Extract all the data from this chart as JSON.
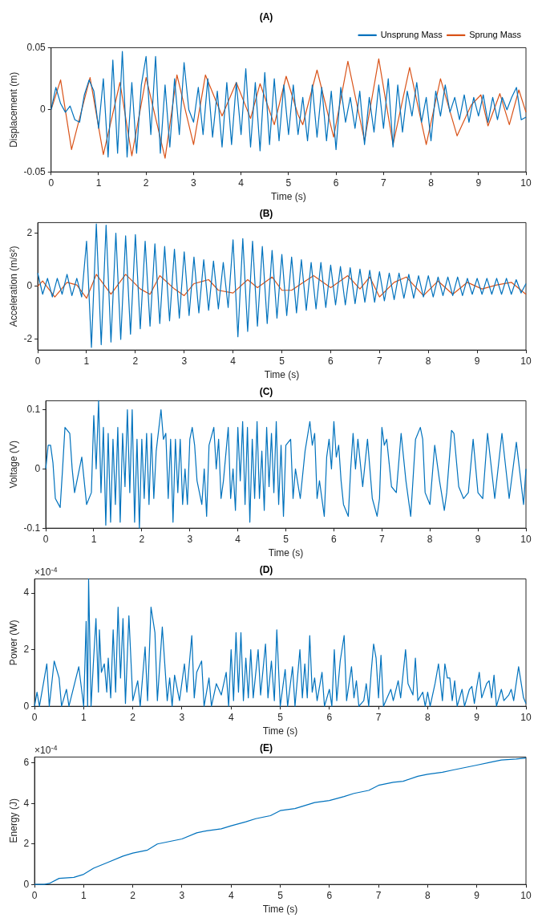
{
  "chart_data": [
    {
      "type": "line",
      "title": "(A)",
      "xlabel": "Time (s)",
      "ylabel": "Displacement (m)",
      "xlim": [
        0,
        10
      ],
      "xticks": [
        0,
        1,
        2,
        3,
        4,
        5,
        6,
        7,
        8,
        9,
        10
      ],
      "ylim": [
        -0.05,
        0.05
      ],
      "yticks": [
        -0.05,
        0,
        0.05
      ],
      "legend": "top right",
      "marker": "none",
      "series": [
        {
          "name": "Unsprung Mass",
          "color": "#0072bd",
          "x": [
            0,
            0.1,
            0.2,
            0.3,
            0.4,
            0.5,
            0.6,
            0.7,
            0.8,
            0.9,
            1,
            1.1,
            1.2,
            1.3,
            1.4,
            1.5,
            1.6,
            1.7,
            1.8,
            1.9,
            2,
            2.1,
            2.2,
            2.3,
            2.4,
            2.5,
            2.6,
            2.7,
            2.8,
            2.9,
            3,
            3.1,
            3.2,
            3.3,
            3.4,
            3.5,
            3.6,
            3.7,
            3.8,
            3.9,
            4,
            4.1,
            4.2,
            4.3,
            4.4,
            4.5,
            4.6,
            4.7,
            4.8,
            4.9,
            5,
            5.1,
            5.2,
            5.3,
            5.4,
            5.5,
            5.6,
            5.7,
            5.8,
            5.9,
            6,
            6.1,
            6.2,
            6.3,
            6.4,
            6.5,
            6.6,
            6.7,
            6.8,
            6.9,
            7,
            7.1,
            7.2,
            7.3,
            7.4,
            7.5,
            7.6,
            7.7,
            7.8,
            7.9,
            8,
            8.1,
            8.2,
            8.3,
            8.4,
            8.5,
            8.6,
            8.7,
            8.8,
            8.9,
            9,
            9.1,
            9.2,
            9.3,
            9.4,
            9.5,
            9.6,
            9.7,
            9.8,
            9.9,
            10
          ],
          "values": [
            0,
            0.018,
            0.005,
            -0.002,
            0.003,
            -0.008,
            -0.01,
            0.012,
            0.024,
            0.015,
            -0.015,
            0.025,
            -0.038,
            0.04,
            -0.035,
            0.047,
            -0.038,
            0.022,
            -0.035,
            0.02,
            0.043,
            -0.02,
            0.043,
            -0.035,
            0.02,
            -0.03,
            0.025,
            -0.02,
            0.038,
            0,
            -0.01,
            0.018,
            -0.02,
            0.025,
            -0.022,
            0.015,
            -0.03,
            0.022,
            -0.028,
            0.022,
            -0.02,
            0.033,
            -0.03,
            0.022,
            -0.033,
            0.03,
            -0.028,
            0.025,
            -0.025,
            0.02,
            -0.02,
            0.02,
            -0.02,
            0.01,
            -0.025,
            0.02,
            -0.022,
            0.018,
            -0.025,
            0.015,
            -0.032,
            0.018,
            -0.01,
            0.01,
            -0.015,
            0.015,
            -0.028,
            0.01,
            -0.018,
            0.02,
            -0.015,
            0.025,
            -0.03,
            0.02,
            -0.018,
            0.015,
            -0.005,
            0.022,
            -0.01,
            0.01,
            -0.025,
            0.015,
            -0.005,
            0.02,
            -0.002,
            0.01,
            -0.008,
            0.012,
            -0.01,
            0.01,
            -0.005,
            0.012,
            -0.01,
            0.01,
            -0.008,
            0.01,
            0,
            0.01,
            0.018,
            -0.008,
            -0.006
          ]
        },
        {
          "name": "Sprung Mass",
          "color": "#d95319",
          "x": [
            0,
            0.2,
            0.43,
            0.82,
            1.1,
            1.45,
            1.7,
            2,
            2.4,
            2.65,
            3,
            3.25,
            3.6,
            3.9,
            4.2,
            4.4,
            4.7,
            4.95,
            5.2,
            5.3,
            5.6,
            5.95,
            6.25,
            6.6,
            6.9,
            7.2,
            7.55,
            7.9,
            8.2,
            8.55,
            8.85,
            9.05,
            9.2,
            9.45,
            9.65,
            9.85,
            10
          ],
          "values": [
            0,
            0.024,
            -0.032,
            0.026,
            -0.036,
            0.022,
            -0.037,
            0.026,
            -0.039,
            0.028,
            -0.028,
            0.028,
            -0.005,
            0.022,
            -0.007,
            0.021,
            -0.012,
            0.027,
            -0.004,
            -0.012,
            0.032,
            -0.022,
            0.039,
            -0.025,
            0.041,
            -0.028,
            0.034,
            -0.028,
            0.025,
            -0.021,
            0.004,
            0.012,
            -0.013,
            0.013,
            -0.012,
            0.016,
            -0.002
          ]
        }
      ]
    },
    {
      "type": "line",
      "title": "(B)",
      "xlabel": "Time (s)",
      "ylabel": "Acceleration (m/s²)",
      "xlim": [
        0,
        10
      ],
      "xticks": [
        0,
        1,
        2,
        3,
        4,
        5,
        6,
        7,
        8,
        9,
        10
      ],
      "ylim": [
        -2.4,
        2.4
      ],
      "yticks": [
        -2,
        0,
        2
      ],
      "marker": "none",
      "series": [
        {
          "color": "#0072bd",
          "x": [
            0,
            0.1,
            0.2,
            0.3,
            0.4,
            0.5,
            0.6,
            0.7,
            0.8,
            0.9,
            1,
            1.1,
            1.2,
            1.3,
            1.4,
            1.5,
            1.6,
            1.7,
            1.8,
            1.9,
            2,
            2.1,
            2.2,
            2.3,
            2.4,
            2.5,
            2.6,
            2.7,
            2.8,
            2.9,
            3,
            3.1,
            3.2,
            3.3,
            3.4,
            3.5,
            3.6,
            3.7,
            3.8,
            3.9,
            4,
            4.1,
            4.2,
            4.3,
            4.4,
            4.5,
            4.6,
            4.7,
            4.8,
            4.9,
            5,
            5.1,
            5.2,
            5.3,
            5.4,
            5.5,
            5.6,
            5.7,
            5.8,
            5.9,
            6,
            6.1,
            6.2,
            6.3,
            6.4,
            6.5,
            6.6,
            6.7,
            6.8,
            6.9,
            7,
            7.1,
            7.2,
            7.3,
            7.4,
            7.5,
            7.6,
            7.7,
            7.8,
            7.9,
            8,
            8.1,
            8.2,
            8.3,
            8.4,
            8.5,
            8.6,
            8.7,
            8.8,
            8.9,
            9,
            9.1,
            9.2,
            9.3,
            9.4,
            9.5,
            9.6,
            9.7,
            9.8,
            9.9,
            10
          ],
          "values": [
            0.5,
            -0.3,
            0.3,
            -0.4,
            0.3,
            -0.3,
            0.45,
            -0.35,
            0.3,
            -0.4,
            1.7,
            -2.3,
            2.35,
            -2.2,
            2.3,
            -2.1,
            2,
            -2,
            1.9,
            -1.8,
            1.95,
            -1.6,
            1.7,
            -1.5,
            1.6,
            -1.4,
            1.5,
            -1.3,
            1.4,
            -1.2,
            1.3,
            -1.1,
            1.1,
            -1,
            1,
            -0.9,
            0.95,
            -0.85,
            0.9,
            -0.8,
            1.75,
            -1.9,
            1.8,
            -1.7,
            1.7,
            -1.5,
            1.5,
            -1.4,
            1.35,
            -1.2,
            1.2,
            -1.1,
            1.1,
            -1,
            1,
            -0.9,
            0.9,
            -0.85,
            0.9,
            -0.8,
            0.8,
            -0.7,
            0.75,
            -0.7,
            0.7,
            -0.65,
            0.65,
            -0.6,
            0.6,
            -0.6,
            0.55,
            -0.55,
            0.5,
            -0.5,
            0.5,
            -0.45,
            0.45,
            -0.45,
            0.4,
            -0.4,
            0.4,
            -0.4,
            0.35,
            -0.35,
            0.35,
            -0.35,
            0.35,
            -0.35,
            0.3,
            -0.3,
            0.3,
            -0.3,
            0.3,
            -0.3,
            0.3,
            -0.3,
            0.3,
            -0.3,
            0.25,
            -0.25,
            0.1
          ]
        },
        {
          "color": "#d95319",
          "x": [
            0,
            0.1,
            0.35,
            0.6,
            0.8,
            1,
            1.2,
            1.5,
            1.8,
            2.1,
            2.3,
            2.5,
            2.8,
            3,
            3.2,
            3.5,
            3.7,
            4,
            4.3,
            4.5,
            4.8,
            5,
            5.2,
            5.4,
            5.65,
            6,
            6.35,
            6.6,
            6.8,
            7,
            7.3,
            7.55,
            7.9,
            8.2,
            8.5,
            8.8,
            9.1,
            9.4,
            9.7,
            10
          ],
          "values": [
            0,
            0.2,
            -0.4,
            0.15,
            0.05,
            -0.45,
            0.45,
            -0.3,
            0.45,
            -0.1,
            -0.3,
            0.4,
            -0.1,
            -0.35,
            0.1,
            0.25,
            -0.15,
            -0.25,
            0.25,
            -0.05,
            0.35,
            -0.15,
            -0.15,
            0.1,
            0.4,
            -0.05,
            0.4,
            -0.1,
            0.35,
            -0.4,
            0.15,
            0.35,
            -0.35,
            0.2,
            -0.3,
            0.15,
            -0.1,
            0.05,
            0.15,
            -0.3
          ]
        }
      ]
    },
    {
      "type": "line",
      "title": "(C)",
      "xlabel": "Time (s)",
      "ylabel": "Voltage (V)",
      "xlim": [
        0,
        10
      ],
      "xticks": [
        0,
        1,
        2,
        3,
        4,
        5,
        6,
        7,
        8,
        9,
        10
      ],
      "ylim": [
        -0.1,
        0.115
      ],
      "yticks": [
        -0.1,
        0,
        0.1
      ],
      "marker": "none",
      "series": [
        {
          "color": "#0072bd",
          "x": [
            0,
            0.05,
            0.1,
            0.15,
            0.2,
            0.3,
            0.35,
            0.4,
            0.5,
            0.55,
            0.6,
            0.7,
            0.75,
            0.85,
            0.95,
            1,
            1.05,
            1.1,
            1.15,
            1.2,
            1.25,
            1.3,
            1.35,
            1.4,
            1.45,
            1.5,
            1.55,
            1.6,
            1.65,
            1.7,
            1.75,
            1.8,
            1.85,
            1.9,
            1.95,
            2,
            2.05,
            2.1,
            2.15,
            2.2,
            2.25,
            2.3,
            2.4,
            2.45,
            2.5,
            2.55,
            2.6,
            2.65,
            2.7,
            2.75,
            2.8,
            2.85,
            2.9,
            2.95,
            3,
            3.05,
            3.1,
            3.15,
            3.25,
            3.3,
            3.35,
            3.4,
            3.5,
            3.55,
            3.6,
            3.65,
            3.7,
            3.8,
            3.85,
            3.9,
            3.95,
            4,
            4.05,
            4.1,
            4.15,
            4.2,
            4.25,
            4.3,
            4.35,
            4.4,
            4.45,
            4.5,
            4.55,
            4.6,
            4.65,
            4.7,
            4.75,
            4.8,
            4.85,
            4.9,
            4.95,
            5,
            5.1,
            5.15,
            5.2,
            5.3,
            5.4,
            5.5,
            5.55,
            5.6,
            5.65,
            5.7,
            5.8,
            5.85,
            5.9,
            5.95,
            6,
            6.05,
            6.1,
            6.15,
            6.2,
            6.3,
            6.35,
            6.4,
            6.45,
            6.5,
            6.6,
            6.7,
            6.75,
            6.8,
            6.9,
            6.95,
            7,
            7.05,
            7.1,
            7.2,
            7.3,
            7.4,
            7.5,
            7.6,
            7.7,
            7.8,
            7.85,
            7.9,
            8,
            8.1,
            8.2,
            8.3,
            8.35,
            8.45,
            8.5,
            8.6,
            8.7,
            8.8,
            8.9,
            9,
            9.1,
            9.2,
            9.35,
            9.5,
            9.65,
            9.8,
            9.95,
            10
          ],
          "values": [
            0,
            0.04,
            0.04,
            0.01,
            -0.05,
            -0.065,
            0,
            0.07,
            0.06,
            0,
            -0.04,
            0,
            0.02,
            -0.06,
            -0.04,
            0.09,
            0,
            0.115,
            -0.04,
            0.07,
            -0.095,
            0.06,
            -0.09,
            0.05,
            -0.06,
            0.07,
            -0.09,
            0.06,
            -0.03,
            0.1,
            -0.04,
            0.1,
            -0.09,
            0.05,
            -0.1,
            0.05,
            -0.05,
            0.06,
            -0.06,
            0.06,
            -0.05,
            0.03,
            0.1,
            0.05,
            0.06,
            -0.05,
            0.05,
            -0.09,
            0.05,
            -0.04,
            0.05,
            -0.06,
            0,
            -0.06,
            0.05,
            0.07,
            0.04,
            -0.02,
            -0.06,
            0,
            -0.08,
            0.04,
            0.07,
            0,
            0.05,
            -0.05,
            -0.02,
            0.07,
            -0.05,
            0,
            -0.07,
            0.07,
            -0.02,
            0.08,
            -0.06,
            0.07,
            -0.09,
            0.05,
            -0.05,
            0.08,
            -0.05,
            0.03,
            -0.07,
            0.07,
            -0.03,
            0.06,
            -0.04,
            0.08,
            -0.06,
            0.04,
            -0.08,
            0.04,
            0.05,
            -0.05,
            0,
            -0.05,
            0.03,
            0.08,
            0.04,
            0.06,
            -0.05,
            -0.02,
            -0.08,
            0.02,
            0.05,
            0,
            0.08,
            0.02,
            0.04,
            -0.02,
            -0.06,
            -0.08,
            0,
            0.06,
            0,
            0.05,
            -0.03,
            0.05,
            0,
            -0.05,
            -0.08,
            -0.05,
            0.07,
            0.04,
            0.05,
            -0.03,
            -0.04,
            0.06,
            -0.02,
            -0.08,
            0.05,
            0.07,
            0.05,
            -0.04,
            -0.06,
            0.04,
            -0.02,
            -0.07,
            -0.04,
            0.065,
            0.06,
            -0.03,
            -0.05,
            -0.04,
            0.05,
            -0.04,
            -0.05,
            0.06,
            -0.05,
            0.06,
            -0.05,
            0.045,
            -0.06,
            0
          ]
        }
      ]
    },
    {
      "type": "line",
      "title": "(D)",
      "xlabel": "Time (s)",
      "ylabel": "Power (W)",
      "xlim": [
        0,
        10
      ],
      "xticks": [
        0,
        1,
        2,
        3,
        4,
        5,
        6,
        7,
        8,
        9,
        10
      ],
      "ylim": [
        0,
        4.5
      ],
      "yticks": [
        0,
        2,
        4
      ],
      "marker": "none",
      "annotations": [
        "×10$^{-4}$"
      ],
      "series": [
        {
          "color": "#0072bd",
          "x": [
            0,
            0.05,
            0.1,
            0.2,
            0.25,
            0.3,
            0.4,
            0.5,
            0.55,
            0.65,
            0.7,
            0.9,
            1,
            1.05,
            1.08,
            1.1,
            1.15,
            1.2,
            1.25,
            1.3,
            1.32,
            1.36,
            1.42,
            1.47,
            1.5,
            1.55,
            1.6,
            1.65,
            1.7,
            1.75,
            1.8,
            1.85,
            1.92,
            2,
            2.1,
            2.15,
            2.25,
            2.3,
            2.37,
            2.45,
            2.5,
            2.6,
            2.7,
            2.75,
            2.8,
            2.85,
            2.95,
            3.05,
            3.1,
            3.2,
            3.25,
            3.3,
            3.4,
            3.45,
            3.55,
            3.6,
            3.7,
            3.8,
            3.9,
            3.95,
            4,
            4.05,
            4.1,
            4.15,
            4.2,
            4.25,
            4.3,
            4.35,
            4.4,
            4.45,
            4.55,
            4.6,
            4.7,
            4.75,
            4.82,
            4.88,
            4.93,
            5,
            5.1,
            5.15,
            5.25,
            5.3,
            5.4,
            5.45,
            5.5,
            5.55,
            5.6,
            5.65,
            5.7,
            5.75,
            5.85,
            5.9,
            6,
            6.05,
            6.1,
            6.15,
            6.22,
            6.3,
            6.35,
            6.45,
            6.5,
            6.55,
            6.6,
            6.7,
            6.75,
            6.8,
            6.85,
            6.9,
            6.95,
            7,
            7.05,
            7.1,
            7.25,
            7.3,
            7.4,
            7.45,
            7.55,
            7.6,
            7.7,
            7.75,
            7.8,
            7.9,
            7.95,
            8,
            8.05,
            8.15,
            8.22,
            8.3,
            8.35,
            8.4,
            8.45,
            8.5,
            8.55,
            8.6,
            8.7,
            8.75,
            8.85,
            8.9,
            8.95,
            9,
            9.05,
            9.1,
            9.2,
            9.25,
            9.3,
            9.35,
            9.4,
            9.5,
            9.55,
            9.65,
            9.7,
            9.75,
            9.85,
            9.95,
            10
          ],
          "values": [
            0,
            0.5,
            0,
            1,
            1.5,
            0,
            1.6,
            1,
            0,
            0.6,
            0,
            1.4,
            0,
            3,
            0,
            4.5,
            0,
            1.6,
            3.1,
            0.5,
            2.7,
            1.2,
            1.5,
            0.5,
            1.7,
            0.3,
            2.7,
            0.5,
            3.5,
            1,
            3.1,
            0.1,
            3.2,
            0.2,
            0.9,
            0,
            2.1,
            0.2,
            3.5,
            2.6,
            0.2,
            2.8,
            0.2,
            1,
            0,
            1.1,
            0.2,
            1.5,
            0.5,
            2.5,
            0.3,
            1.2,
            1.6,
            0,
            1,
            0,
            0.8,
            0.4,
            1.2,
            0,
            2,
            0.2,
            2.6,
            0.5,
            2.6,
            0.2,
            1.7,
            0.3,
            2,
            0.3,
            2,
            0.4,
            2.2,
            0.3,
            1.6,
            0.2,
            2.7,
            0,
            1.3,
            0,
            1.4,
            0,
            2,
            0.3,
            1.5,
            0.3,
            2.5,
            0.5,
            1,
            0.2,
            1.2,
            0,
            0.6,
            0,
            2,
            0.2,
            1.6,
            2.5,
            0.2,
            1.4,
            0.3,
            0.9,
            0,
            0.2,
            0.8,
            0,
            1.2,
            2.2,
            1.7,
            0.3,
            1.8,
            0,
            0.6,
            0.2,
            0.9,
            0.3,
            2,
            0.8,
            0.4,
            1.7,
            0.2,
            0.5,
            0,
            0.5,
            0,
            0.8,
            1.5,
            0.2,
            1.5,
            1,
            1,
            0.2,
            0.9,
            0,
            0.6,
            0,
            0.6,
            0.7,
            0.1,
            0.7,
            1.2,
            0.3,
            0.8,
            0.9,
            0.3,
            1.1,
            0,
            0.6,
            0.2,
            0.4,
            0.6,
            0.2,
            1.4,
            0.3,
            0.1
          ]
        }
      ]
    },
    {
      "type": "line",
      "title": "(E)",
      "xlabel": "Time (s)",
      "ylabel": "Energy (J)",
      "xlim": [
        0,
        10
      ],
      "xticks": [
        0,
        1,
        2,
        3,
        4,
        5,
        6,
        7,
        8,
        9,
        10
      ],
      "ylim": [
        0,
        6.3
      ],
      "yticks": [
        0,
        2,
        4,
        6
      ],
      "marker": "none",
      "annotations": [
        "×10$^{-4}$"
      ],
      "series": [
        {
          "color": "#0072bd",
          "x": [
            0,
            0.2,
            0.3,
            0.5,
            0.8,
            1,
            1.2,
            1.5,
            1.8,
            2,
            2.3,
            2.5,
            2.8,
            3,
            3.3,
            3.5,
            3.8,
            4,
            4.3,
            4.5,
            4.8,
            5,
            5.3,
            5.5,
            5.7,
            6,
            6.3,
            6.5,
            6.8,
            7,
            7.3,
            7.5,
            7.8,
            8,
            8.3,
            8.5,
            8.8,
            9,
            9.3,
            9.5,
            9.8,
            10
          ],
          "values": [
            0,
            0,
            0.05,
            0.3,
            0.35,
            0.5,
            0.8,
            1.1,
            1.4,
            1.55,
            1.7,
            2,
            2.15,
            2.25,
            2.55,
            2.65,
            2.75,
            2.9,
            3.1,
            3.25,
            3.4,
            3.65,
            3.75,
            3.9,
            4.05,
            4.15,
            4.35,
            4.5,
            4.65,
            4.9,
            5.05,
            5.1,
            5.35,
            5.45,
            5.55,
            5.65,
            5.8,
            5.9,
            6.05,
            6.15,
            6.2,
            6.25
          ]
        }
      ]
    }
  ]
}
